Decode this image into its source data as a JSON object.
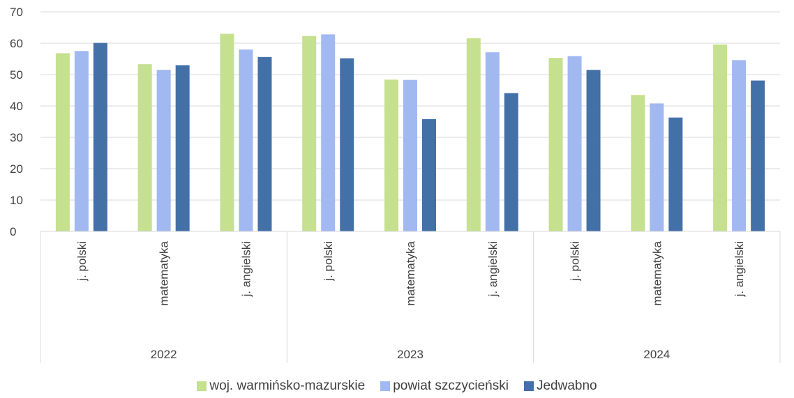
{
  "chart_data": {
    "type": "bar",
    "title": "",
    "xlabel": "",
    "ylabel": "",
    "ylim": [
      0,
      70
    ],
    "yticks": [
      0,
      10,
      20,
      30,
      40,
      50,
      60,
      70
    ],
    "grid": true,
    "legend_position": "bottom",
    "groups": [
      {
        "label": "2022",
        "categories": [
          "j. polski",
          "matematyka",
          "j. angielski"
        ]
      },
      {
        "label": "2023",
        "categories": [
          "j. polski",
          "matematyka",
          "j. angielski"
        ]
      },
      {
        "label": "2024",
        "categories": [
          "j. polski",
          "matematyka",
          "j. angielski"
        ]
      }
    ],
    "series": [
      {
        "name": "woj. warmińsko-mazurskie",
        "color": "#c5e08f",
        "values": [
          56.8,
          53.3,
          63.0,
          62.3,
          48.4,
          61.6,
          55.3,
          43.5,
          59.6
        ]
      },
      {
        "name": "powiat szczycieński",
        "color": "#a1b8f0",
        "values": [
          57.5,
          51.5,
          58.0,
          62.8,
          48.3,
          57.1,
          55.9,
          40.8,
          54.6
        ]
      },
      {
        "name": "Jedwabno",
        "color": "#4470a8",
        "values": [
          60.1,
          53.0,
          55.6,
          55.2,
          35.8,
          44.1,
          51.5,
          36.3,
          48.1
        ]
      }
    ]
  }
}
